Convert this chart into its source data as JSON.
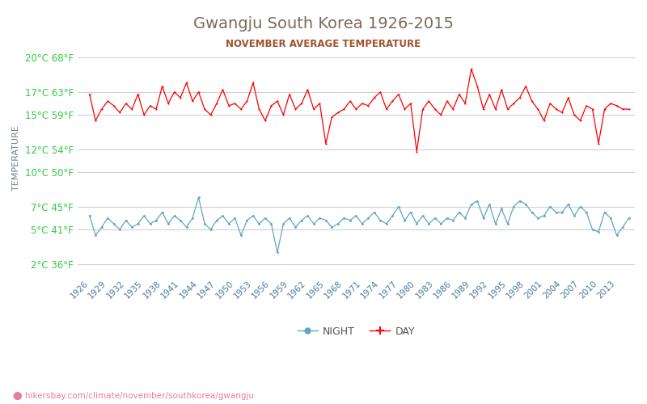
{
  "title": "Gwangju South Korea 1926-2015",
  "subtitle": "NOVEMBER AVERAGE TEMPERATURE",
  "ylabel": "TEMPERATURE",
  "title_color": "#7a6a5a",
  "subtitle_color": "#a0522d",
  "ylabel_color": "#708090",
  "background_color": "#ffffff",
  "grid_color": "#d0d0d0",
  "url_text": "hikersbay.com/climate/november/southkorea/gwangju",
  "years": [
    1926,
    1929,
    1932,
    1935,
    1938,
    1941,
    1944,
    1947,
    1950,
    1953,
    1956,
    1959,
    1962,
    1965,
    1968,
    1971,
    1974,
    1977,
    1980,
    1983,
    1986,
    1989,
    1992,
    1995,
    1998,
    2001,
    2004,
    2007,
    2010,
    2013
  ],
  "x_years_all": [
    1926,
    1927,
    1928,
    1929,
    1930,
    1931,
    1932,
    1933,
    1934,
    1935,
    1936,
    1937,
    1938,
    1939,
    1940,
    1941,
    1942,
    1943,
    1944,
    1945,
    1946,
    1947,
    1948,
    1949,
    1950,
    1951,
    1952,
    1953,
    1954,
    1955,
    1956,
    1957,
    1958,
    1959,
    1960,
    1961,
    1962,
    1963,
    1964,
    1965,
    1966,
    1967,
    1968,
    1969,
    1970,
    1971,
    1972,
    1973,
    1974,
    1975,
    1976,
    1977,
    1978,
    1979,
    1980,
    1981,
    1982,
    1983,
    1984,
    1985,
    1986,
    1987,
    1988,
    1989,
    1990,
    1991,
    1992,
    1993,
    1994,
    1995,
    1996,
    1997,
    1998,
    1999,
    2000,
    2001,
    2002,
    2003,
    2004,
    2005,
    2006,
    2007,
    2008,
    2009,
    2010,
    2011,
    2012,
    2013,
    2014,
    2015
  ],
  "day_temps": [
    16.8,
    14.5,
    15.5,
    16.2,
    15.8,
    15.2,
    16.0,
    15.5,
    16.8,
    15.0,
    15.8,
    15.5,
    17.5,
    16.0,
    17.0,
    16.5,
    17.8,
    16.2,
    17.0,
    15.5,
    15.0,
    16.0,
    17.2,
    15.8,
    16.0,
    15.5,
    16.2,
    17.8,
    15.5,
    14.5,
    15.8,
    16.2,
    15.0,
    16.8,
    15.5,
    16.0,
    17.2,
    15.5,
    16.0,
    12.5,
    14.8,
    15.2,
    15.5,
    16.2,
    15.5,
    16.0,
    15.8,
    16.5,
    17.0,
    15.5,
    16.2,
    16.8,
    15.5,
    16.0,
    11.8,
    15.5,
    16.2,
    15.5,
    15.0,
    16.2,
    15.5,
    16.8,
    16.0,
    19.0,
    17.5,
    15.5,
    16.8,
    15.5,
    17.2,
    15.5,
    16.0,
    16.5,
    17.5,
    16.2,
    15.5,
    14.5,
    16.0,
    15.5,
    15.2,
    16.5,
    15.0,
    14.5,
    15.8,
    15.5,
    12.5,
    15.5,
    16.0,
    15.8,
    15.5,
    15.5
  ],
  "night_temps": [
    6.2,
    4.5,
    5.2,
    6.0,
    5.5,
    5.0,
    5.8,
    5.2,
    5.5,
    6.2,
    5.5,
    5.8,
    6.5,
    5.5,
    6.2,
    5.8,
    5.2,
    6.0,
    7.8,
    5.5,
    5.0,
    5.8,
    6.2,
    5.5,
    6.0,
    4.5,
    5.8,
    6.2,
    5.5,
    6.0,
    5.5,
    3.0,
    5.5,
    6.0,
    5.2,
    5.8,
    6.2,
    5.5,
    6.0,
    5.8,
    5.2,
    5.5,
    6.0,
    5.8,
    6.2,
    5.5,
    6.0,
    6.5,
    5.8,
    5.5,
    6.2,
    7.0,
    5.8,
    6.5,
    5.5,
    6.2,
    5.5,
    6.0,
    5.5,
    6.0,
    5.8,
    6.5,
    6.0,
    7.2,
    7.5,
    6.0,
    7.2,
    5.5,
    6.8,
    5.5,
    7.0,
    7.5,
    7.2,
    6.5,
    6.0,
    6.2,
    7.0,
    6.5,
    6.5,
    7.2,
    6.2,
    7.0,
    6.5,
    5.0,
    4.8,
    6.5,
    6.0,
    4.5,
    5.2,
    6.0
  ],
  "day_color": "#ff0000",
  "night_color": "#5fa8c0",
  "day_marker": "+",
  "night_marker": "o",
  "yticks_celsius": [
    2,
    5,
    7,
    10,
    12,
    15,
    17,
    20
  ],
  "yticks_fahrenheit": [
    36,
    41,
    45,
    50,
    54,
    59,
    63,
    68
  ],
  "ylim": [
    1.0,
    21.5
  ],
  "xlim": [
    1924,
    2016
  ]
}
